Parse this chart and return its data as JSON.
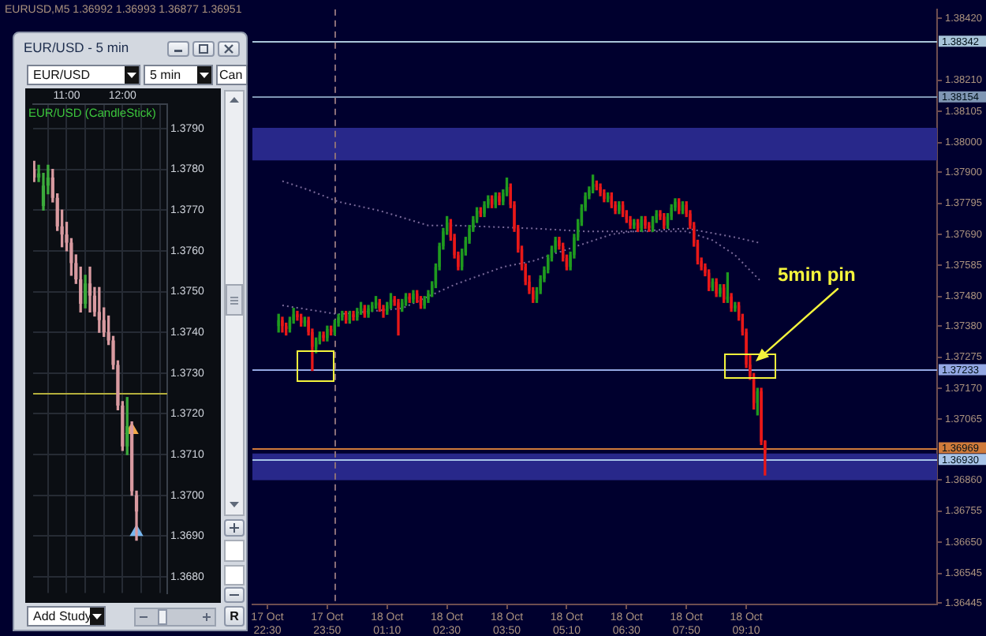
{
  "chart_data": [
    {
      "type": "candlestick",
      "title": "EURUSD,M5 1.36992 1.36993 1.36877 1.36951",
      "x": [
        "--10-17T22:45",
        "--10-17T22:50",
        "--10-17T22:55",
        "--10-17T23:00",
        "--10-17T23:05",
        "--10-17T23:10",
        "--10-17T23:15",
        "--10-17T23:20",
        "--10-17T23:25",
        "--10-17T23:30",
        "--10-17T23:35",
        "--10-17T23:40",
        "--10-17T23:45",
        "--10-17T23:50",
        "--10-17T23:55",
        "--10-18T00:00",
        "--10-18T00:05",
        "--10-18T00:10",
        "--10-18T00:15",
        "--10-18T00:20",
        "--10-18T00:25",
        "--10-18T00:30",
        "--10-18T00:35",
        "--10-18T00:40",
        "--10-18T00:45",
        "--10-18T00:50",
        "--10-18T00:55",
        "--10-18T01:00",
        "--10-18T01:05",
        "--10-18T01:10",
        "--10-18T01:15",
        "--10-18T01:20",
        "--10-18T01:25",
        "--10-18T01:30",
        "--10-18T01:35",
        "--10-18T01:40",
        "--10-18T01:45",
        "--10-18T01:50",
        "--10-18T01:55",
        "--10-18T02:00",
        "--10-18T02:05",
        "--10-18T02:10",
        "--10-18T02:15",
        "--10-18T02:20",
        "--10-18T02:25",
        "--10-18T02:30",
        "--10-18T02:35",
        "--10-18T02:40",
        "--10-18T02:45",
        "--10-18T02:50",
        "--10-18T02:55",
        "--10-18T03:00",
        "--10-18T03:05",
        "--10-18T03:10",
        "--10-18T03:15",
        "--10-18T03:20",
        "--10-18T03:25",
        "--10-18T03:30",
        "--10-18T03:35",
        "--10-18T03:40",
        "--10-18T03:45",
        "--10-18T03:50",
        "--10-18T03:55",
        "--10-18T04:00",
        "--10-18T04:05",
        "--10-18T04:10",
        "--10-18T04:15",
        "--10-18T04:20",
        "--10-18T04:25",
        "--10-18T04:30",
        "--10-18T04:35",
        "--10-18T04:40",
        "--10-18T04:45",
        "--10-18T04:50",
        "--10-18T04:55",
        "--10-18T05:00",
        "--10-18T05:05",
        "--10-18T05:10",
        "--10-18T05:15",
        "--10-18T05:20",
        "--10-18T05:25",
        "--10-18T05:30",
        "--10-18T05:35",
        "--10-18T05:40",
        "--10-18T05:45",
        "--10-18T05:50",
        "--10-18T05:55",
        "--10-18T06:00",
        "--10-18T06:05",
        "--10-18T06:10",
        "--10-18T06:15",
        "--10-18T06:20",
        "--10-18T06:25",
        "--10-18T06:30",
        "--10-18T06:35",
        "--10-18T06:40",
        "--10-18T06:45",
        "--10-18T06:50",
        "--10-18T06:55",
        "--10-18T07:00",
        "--10-18T07:05",
        "--10-18T07:10",
        "--10-18T07:15",
        "--10-18T07:20",
        "--10-18T07:25",
        "--10-18T07:30",
        "--10-18T07:35",
        "--10-18T07:40",
        "--10-18T07:45",
        "--10-18T07:50",
        "--10-18T07:55",
        "--10-18T08:00",
        "--10-18T08:05",
        "--10-18T08:10",
        "--10-18T08:15",
        "--10-18T08:20",
        "--10-18T08:25",
        "--10-18T08:30",
        "--10-18T08:35",
        "--10-18T08:40",
        "--10-18T08:45",
        "--10-18T08:50",
        "--10-18T08:55",
        "--10-18T09:00",
        "--10-18T09:05",
        "--10-18T09:10",
        "--10-18T09:15",
        "--10-18T09:20",
        "--10-18T09:25",
        "--10-18T09:30",
        "--10-18T09:35"
      ],
      "ohlc": [
        [
          1.3738,
          1.3742,
          1.3736,
          1.374
        ],
        [
          1.374,
          1.3741,
          1.3736,
          1.3738
        ],
        [
          1.3738,
          1.3739,
          1.3735,
          1.3737
        ],
        [
          1.3737,
          1.3741,
          1.3736,
          1.374
        ],
        [
          1.374,
          1.3744,
          1.3739,
          1.3742
        ],
        [
          1.3742,
          1.3743,
          1.374,
          1.3741
        ],
        [
          1.3741,
          1.3742,
          1.3738,
          1.3739
        ],
        [
          1.3739,
          1.3741,
          1.3738,
          1.374
        ],
        [
          1.374,
          1.3741,
          1.3735,
          1.3736
        ],
        [
          1.3736,
          1.3737,
          1.3723,
          1.3731
        ],
        [
          1.3731,
          1.3734,
          1.3729,
          1.3733
        ],
        [
          1.3733,
          1.3736,
          1.3732,
          1.3735
        ],
        [
          1.3735,
          1.3736,
          1.3733,
          1.3734
        ],
        [
          1.3734,
          1.3738,
          1.3733,
          1.3737
        ],
        [
          1.3737,
          1.3738,
          1.3735,
          1.3736
        ],
        [
          1.3736,
          1.374,
          1.3735,
          1.3739
        ],
        [
          1.3739,
          1.3742,
          1.3738,
          1.3741
        ],
        [
          1.3741,
          1.3743,
          1.374,
          1.3742
        ],
        [
          1.3742,
          1.3743,
          1.3739,
          1.374
        ],
        [
          1.374,
          1.3743,
          1.3739,
          1.3742
        ],
        [
          1.3742,
          1.3743,
          1.374,
          1.3741
        ],
        [
          1.3741,
          1.3744,
          1.374,
          1.3743
        ],
        [
          1.3743,
          1.3746,
          1.3742,
          1.3744
        ],
        [
          1.3744,
          1.3745,
          1.3741,
          1.3742
        ],
        [
          1.3742,
          1.3745,
          1.3741,
          1.3744
        ],
        [
          1.3744,
          1.3746,
          1.3743,
          1.3745
        ],
        [
          1.3745,
          1.3748,
          1.3744,
          1.3746
        ],
        [
          1.3746,
          1.3747,
          1.3743,
          1.3744
        ],
        [
          1.3744,
          1.3745,
          1.3741,
          1.3743
        ],
        [
          1.3743,
          1.3746,
          1.3742,
          1.3745
        ],
        [
          1.3745,
          1.3749,
          1.3744,
          1.3747
        ],
        [
          1.3747,
          1.3748,
          1.3745,
          1.3746
        ],
        [
          1.3746,
          1.3747,
          1.3735,
          1.3744
        ],
        [
          1.3744,
          1.3747,
          1.3743,
          1.3746
        ],
        [
          1.3746,
          1.3749,
          1.3745,
          1.3748
        ],
        [
          1.3748,
          1.3749,
          1.3746,
          1.3747
        ],
        [
          1.3747,
          1.375,
          1.3746,
          1.3749
        ],
        [
          1.3749,
          1.375,
          1.3746,
          1.3747
        ],
        [
          1.3747,
          1.3748,
          1.3744,
          1.3745
        ],
        [
          1.3745,
          1.3748,
          1.3744,
          1.3747
        ],
        [
          1.3747,
          1.375,
          1.3746,
          1.3749
        ],
        [
          1.3749,
          1.3753,
          1.3748,
          1.3752
        ],
        [
          1.3752,
          1.3759,
          1.3751,
          1.3758
        ],
        [
          1.3758,
          1.3766,
          1.3757,
          1.3765
        ],
        [
          1.3765,
          1.3771,
          1.3764,
          1.377
        ],
        [
          1.377,
          1.3775,
          1.3769,
          1.3773
        ],
        [
          1.3773,
          1.3774,
          1.3767,
          1.3768
        ],
        [
          1.3768,
          1.3769,
          1.3761,
          1.3762
        ],
        [
          1.3762,
          1.3763,
          1.3757,
          1.3758
        ],
        [
          1.3758,
          1.3764,
          1.3757,
          1.3763
        ],
        [
          1.3763,
          1.3768,
          1.3762,
          1.3767
        ],
        [
          1.3767,
          1.3772,
          1.3766,
          1.3771
        ],
        [
          1.3771,
          1.3775,
          1.377,
          1.3774
        ],
        [
          1.3774,
          1.3778,
          1.3773,
          1.3777
        ],
        [
          1.3777,
          1.3778,
          1.3775,
          1.3776
        ],
        [
          1.3776,
          1.378,
          1.3775,
          1.3779
        ],
        [
          1.3779,
          1.3782,
          1.3778,
          1.3781
        ],
        [
          1.3781,
          1.3782,
          1.3778,
          1.3779
        ],
        [
          1.3779,
          1.3783,
          1.3778,
          1.3782
        ],
        [
          1.3782,
          1.3783,
          1.3779,
          1.378
        ],
        [
          1.378,
          1.3784,
          1.3779,
          1.3783
        ],
        [
          1.3783,
          1.3788,
          1.3782,
          1.3785
        ],
        [
          1.3785,
          1.3786,
          1.3778,
          1.3779
        ],
        [
          1.3779,
          1.378,
          1.377,
          1.3771
        ],
        [
          1.3771,
          1.3772,
          1.3763,
          1.3764
        ],
        [
          1.3764,
          1.3765,
          1.3757,
          1.3758
        ],
        [
          1.3758,
          1.3759,
          1.3752,
          1.3753
        ],
        [
          1.3753,
          1.3755,
          1.3749,
          1.375
        ],
        [
          1.375,
          1.3751,
          1.3746,
          1.3747
        ],
        [
          1.3747,
          1.3751,
          1.3746,
          1.375
        ],
        [
          1.375,
          1.3755,
          1.3749,
          1.3754
        ],
        [
          1.3754,
          1.3758,
          1.3753,
          1.3757
        ],
        [
          1.3757,
          1.3762,
          1.3756,
          1.3761
        ],
        [
          1.3761,
          1.3765,
          1.376,
          1.3764
        ],
        [
          1.3764,
          1.3768,
          1.3763,
          1.3767
        ],
        [
          1.3767,
          1.3768,
          1.3764,
          1.3765
        ],
        [
          1.3765,
          1.3766,
          1.376,
          1.3761
        ],
        [
          1.3761,
          1.3762,
          1.3757,
          1.3758
        ],
        [
          1.3758,
          1.3763,
          1.3757,
          1.3762
        ],
        [
          1.3762,
          1.3769,
          1.3761,
          1.3768
        ],
        [
          1.3768,
          1.3774,
          1.3767,
          1.3773
        ],
        [
          1.3773,
          1.3779,
          1.3772,
          1.3778
        ],
        [
          1.3778,
          1.3783,
          1.3777,
          1.3782
        ],
        [
          1.3782,
          1.3785,
          1.3781,
          1.3784
        ],
        [
          1.3784,
          1.3789,
          1.3783,
          1.3786
        ],
        [
          1.3786,
          1.3787,
          1.3784,
          1.3785
        ],
        [
          1.3785,
          1.3786,
          1.3782,
          1.3783
        ],
        [
          1.3783,
          1.3784,
          1.378,
          1.3781
        ],
        [
          1.3781,
          1.3783,
          1.378,
          1.3782
        ],
        [
          1.3782,
          1.3783,
          1.3778,
          1.3779
        ],
        [
          1.3779,
          1.378,
          1.3776,
          1.3777
        ],
        [
          1.3777,
          1.378,
          1.3776,
          1.3779
        ],
        [
          1.3779,
          1.378,
          1.3775,
          1.3776
        ],
        [
          1.3776,
          1.3777,
          1.3773,
          1.3774
        ],
        [
          1.3774,
          1.3775,
          1.3771,
          1.3772
        ],
        [
          1.3772,
          1.3774,
          1.3771,
          1.3773
        ],
        [
          1.3773,
          1.3774,
          1.377,
          1.3771
        ],
        [
          1.3771,
          1.3775,
          1.377,
          1.3774
        ],
        [
          1.3774,
          1.3775,
          1.3771,
          1.3772
        ],
        [
          1.3772,
          1.3773,
          1.377,
          1.3771
        ],
        [
          1.3771,
          1.3775,
          1.377,
          1.3774
        ],
        [
          1.3774,
          1.3777,
          1.3773,
          1.3776
        ],
        [
          1.3776,
          1.3777,
          1.3774,
          1.3775
        ],
        [
          1.3775,
          1.3776,
          1.3771,
          1.3772
        ],
        [
          1.3772,
          1.3776,
          1.3771,
          1.3775
        ],
        [
          1.3775,
          1.3779,
          1.3774,
          1.3778
        ],
        [
          1.3778,
          1.3781,
          1.3777,
          1.378
        ],
        [
          1.378,
          1.3781,
          1.3776,
          1.3777
        ],
        [
          1.3777,
          1.378,
          1.3776,
          1.3779
        ],
        [
          1.3779,
          1.378,
          1.3775,
          1.3776
        ],
        [
          1.3776,
          1.3777,
          1.3771,
          1.3772
        ],
        [
          1.3772,
          1.3773,
          1.3765,
          1.3766
        ],
        [
          1.3766,
          1.3767,
          1.3759,
          1.376
        ],
        [
          1.376,
          1.3761,
          1.3757,
          1.3758
        ],
        [
          1.3758,
          1.3759,
          1.3755,
          1.3756
        ],
        [
          1.3756,
          1.3757,
          1.375,
          1.3751
        ],
        [
          1.3751,
          1.3754,
          1.375,
          1.3753
        ],
        [
          1.3753,
          1.3754,
          1.3748,
          1.3749
        ],
        [
          1.3749,
          1.3752,
          1.3748,
          1.3751
        ],
        [
          1.3751,
          1.3752,
          1.3746,
          1.3747
        ],
        [
          1.3747,
          1.3756,
          1.3746,
          1.3748
        ],
        [
          1.3748,
          1.3749,
          1.3743,
          1.3744
        ],
        [
          1.3744,
          1.3746,
          1.3743,
          1.3745
        ],
        [
          1.3745,
          1.3746,
          1.374,
          1.3741
        ],
        [
          1.3741,
          1.3742,
          1.3735,
          1.3736
        ],
        [
          1.3736,
          1.3737,
          1.3724,
          1.3725
        ],
        [
          1.3725,
          1.3728,
          1.372,
          1.3721
        ],
        [
          1.3721,
          1.3722,
          1.371,
          1.3712
        ],
        [
          1.3712,
          1.3717,
          1.3708,
          1.3716
        ],
        [
          1.3716,
          1.3717,
          1.3698,
          1.3699
        ],
        [
          1.36992,
          1.36993,
          1.36877,
          1.36951
        ]
      ],
      "colors": [
        "#1f9a1f",
        "#e81818",
        "#e81818",
        "#1f9a1f",
        "#1f9a1f",
        "#e81818",
        "#e81818",
        "#1f9a1f",
        "#e81818",
        "#e81818",
        "#1f9a1f",
        "#1f9a1f",
        "#e81818",
        "#1f9a1f",
        "#e81818",
        "#1f9a1f",
        "#1f9a1f",
        "#1f9a1f",
        "#e81818",
        "#1f9a1f",
        "#e81818",
        "#1f9a1f",
        "#1f9a1f",
        "#e81818",
        "#1f9a1f",
        "#1f9a1f",
        "#1f9a1f",
        "#e81818",
        "#e81818",
        "#1f9a1f",
        "#1f9a1f",
        "#e81818",
        "#e81818",
        "#1f9a1f",
        "#1f9a1f",
        "#e81818",
        "#1f9a1f",
        "#e81818",
        "#e81818",
        "#1f9a1f",
        "#1f9a1f",
        "#1f9a1f",
        "#1f9a1f",
        "#1f9a1f",
        "#1f9a1f",
        "#1f9a1f",
        "#e81818",
        "#e81818",
        "#e81818",
        "#1f9a1f",
        "#1f9a1f",
        "#1f9a1f",
        "#1f9a1f",
        "#1f9a1f",
        "#e81818",
        "#1f9a1f",
        "#1f9a1f",
        "#e81818",
        "#1f9a1f",
        "#e81818",
        "#1f9a1f",
        "#1f9a1f",
        "#e81818",
        "#e81818",
        "#e81818",
        "#e81818",
        "#e81818",
        "#e81818",
        "#e81818",
        "#1f9a1f",
        "#1f9a1f",
        "#1f9a1f",
        "#1f9a1f",
        "#1f9a1f",
        "#1f9a1f",
        "#e81818",
        "#e81818",
        "#e81818",
        "#1f9a1f",
        "#1f9a1f",
        "#1f9a1f",
        "#1f9a1f",
        "#1f9a1f",
        "#1f9a1f",
        "#1f9a1f",
        "#e81818",
        "#e81818",
        "#e81818",
        "#1f9a1f",
        "#e81818",
        "#e81818",
        "#1f9a1f",
        "#e81818",
        "#e81818",
        "#e81818",
        "#1f9a1f",
        "#e81818",
        "#1f9a1f",
        "#e81818",
        "#e81818",
        "#1f9a1f",
        "#1f9a1f",
        "#e81818",
        "#e81818",
        "#1f9a1f",
        "#1f9a1f",
        "#1f9a1f",
        "#e81818",
        "#1f9a1f",
        "#e81818",
        "#e81818",
        "#e81818",
        "#e81818",
        "#e81818",
        "#e81818",
        "#e81818",
        "#1f9a1f",
        "#e81818",
        "#1f9a1f",
        "#e81818",
        "#1f9a1f",
        "#e81818",
        "#1f9a1f",
        "#e81818",
        "#e81818",
        "#e81818",
        "#e81818",
        "#e81818",
        "#1f9a1f",
        "#e81818",
        "#e81818"
      ],
      "series": [
        {
          "type": "line",
          "color": "#7a6a9a",
          "line_style": "dotted",
          "marker": "none",
          "x": [
            "--10-17T22:50",
            "--10-17T23:25",
            "--10-18T00:05",
            "--10-18T01:00",
            "--10-18T02:05",
            "--10-18T02:40",
            "--10-18T04:25",
            "--10-18T05:35",
            "--10-18T06:40",
            "--10-18T07:50",
            "--10-18T08:55",
            "--10-18T09:30"
          ],
          "values": [
            1.3787,
            1.3784,
            1.378,
            1.3777,
            1.3772,
            1.3772,
            1.3771,
            1.377,
            1.377,
            1.3771,
            1.3768,
            1.3766
          ]
        },
        {
          "type": "line",
          "color": "#7a6a9a",
          "line_style": "dotted",
          "marker": "none",
          "x": [
            "--10-17T22:50",
            "--10-18T00:05",
            "--10-18T01:30",
            "--10-18T02:40",
            "--10-18T03:45",
            "--10-18T04:25",
            "--10-18T05:00",
            "--10-18T05:35",
            "--10-18T06:10",
            "--10-18T06:40",
            "--10-18T07:50",
            "--10-18T08:25",
            "--10-18T08:55",
            "--10-18T09:30"
          ],
          "values": [
            1.3745,
            1.3742,
            1.3744,
            1.3752,
            1.3758,
            1.376,
            1.3763,
            1.3766,
            1.3769,
            1.377,
            1.377,
            1.3767,
            1.3762,
            1.3753
          ]
        }
      ],
      "xlim": [
        "--10-17T22:10",
        "--10-18T13:25"
      ],
      "xticks": [
        {
          "value": "--10-17T22:30",
          "label": "17 Oct 22:30"
        },
        {
          "value": "--10-17T23:50",
          "label": "17 Oct 23:50"
        },
        {
          "value": "--10-18T01:10",
          "label": "18 Oct 01:10"
        },
        {
          "value": "--10-18T02:30",
          "label": "18 Oct 02:30"
        },
        {
          "value": "--10-18T03:50",
          "label": "18 Oct 03:50"
        },
        {
          "value": "--10-18T05:10",
          "label": "18 Oct 05:10"
        },
        {
          "value": "--10-18T06:30",
          "label": "18 Oct 06:30"
        },
        {
          "value": "--10-18T07:50",
          "label": "18 Oct 07:50"
        },
        {
          "value": "--10-18T09:10",
          "label": "18 Oct 09:10"
        }
      ],
      "ylim": [
        1.3644,
        1.3845
      ],
      "yticks": [
        {
          "value": 1.3842,
          "label": "1.38420"
        },
        {
          "value": 1.3821,
          "label": "1.38210"
        },
        {
          "value": 1.38105,
          "label": "1.38105"
        },
        {
          "value": 1.38,
          "label": "1.38000"
        },
        {
          "value": 1.379,
          "label": "1.37900"
        },
        {
          "value": 1.37795,
          "label": "1.37795"
        },
        {
          "value": 1.3769,
          "label": "1.37690"
        },
        {
          "value": 1.37585,
          "label": "1.37585"
        },
        {
          "value": 1.3748,
          "label": "1.37480"
        },
        {
          "value": 1.3738,
          "label": "1.37380"
        },
        {
          "value": 1.37275,
          "label": "1.37275"
        },
        {
          "value": 1.3717,
          "label": "1.37170"
        },
        {
          "value": 1.37065,
          "label": "1.37065"
        },
        {
          "value": 1.3686,
          "label": "1.36860"
        },
        {
          "value": 1.36755,
          "label": "1.36755"
        },
        {
          "value": 1.3665,
          "label": "1.36650"
        },
        {
          "value": 1.36545,
          "label": "1.36545"
        },
        {
          "value": 1.36445,
          "label": "1.36445"
        }
      ],
      "bands": [
        {
          "axis": "y",
          "from": 1.3794,
          "to": 1.3805,
          "color": "#28288a"
        },
        {
          "axis": "y",
          "from": 1.3686,
          "to": 1.3695,
          "color": "#28288a"
        }
      ],
      "ref_lines": [
        {
          "axis": "y",
          "value": 1.38342,
          "label": "1.38342",
          "color": "#a8c4d8"
        },
        {
          "axis": "y",
          "value": 1.38154,
          "label": "1.38154",
          "color": "#7f96b4"
        },
        {
          "axis": "y",
          "value": 1.37233,
          "label": "1.37233",
          "color": "#94a8e4"
        },
        {
          "axis": "y",
          "value": 1.36969,
          "label": "1.36969",
          "color": "#d07a3a"
        },
        {
          "axis": "y",
          "value": 1.3693,
          "label": "1.36930",
          "color": "#a8c4e8"
        },
        {
          "axis": "x",
          "value": "--10-18T00:00",
          "color": "#8a6e78",
          "line_style": "dashed"
        }
      ],
      "annotations": [
        "5min pin"
      ]
    },
    {
      "type": "candlestick",
      "title": "EUR/USD - 5 min",
      "subtitle": "EUR/USD (CandleStick)",
      "x": [
        10.4167,
        10.5,
        10.5833,
        10.6667,
        10.75,
        10.8333,
        10.9167,
        11,
        11.0833,
        11.1667,
        11.25,
        11.3333,
        11.4167,
        11.5,
        11.5833,
        11.6667,
        11.75,
        11.8333,
        11.9167,
        12,
        12.0833,
        12.1667,
        12.25
      ],
      "ohlc": [
        [
          1.378,
          1.3782,
          1.3777,
          1.3778
        ],
        [
          1.3778,
          1.3781,
          1.3777,
          1.3779
        ],
        [
          1.3771,
          1.3779,
          1.377,
          1.3776
        ],
        [
          1.3776,
          1.3781,
          1.3774,
          1.3778
        ],
        [
          1.3778,
          1.378,
          1.3772,
          1.3773
        ],
        [
          1.3773,
          1.3774,
          1.3765,
          1.3766
        ],
        [
          1.3766,
          1.377,
          1.3761,
          1.3764
        ],
        [
          1.3764,
          1.3767,
          1.376,
          1.3762
        ],
        [
          1.3762,
          1.3763,
          1.3754,
          1.3757
        ],
        [
          1.3757,
          1.3759,
          1.3752,
          1.3753
        ],
        [
          1.3753,
          1.3756,
          1.3745,
          1.3747
        ],
        [
          1.3747,
          1.3754,
          1.3746,
          1.3752
        ],
        [
          1.3752,
          1.3756,
          1.3745,
          1.3749
        ],
        [
          1.3749,
          1.3751,
          1.3744,
          1.3745
        ],
        [
          1.3745,
          1.3751,
          1.374,
          1.3743
        ],
        [
          1.3743,
          1.3746,
          1.3739,
          1.374
        ],
        [
          1.374,
          1.3744,
          1.3737,
          1.3738
        ],
        [
          1.3738,
          1.3739,
          1.3731,
          1.3732
        ],
        [
          1.3732,
          1.3733,
          1.3721,
          1.3722
        ],
        [
          1.3722,
          1.3723,
          1.3711,
          1.3712
        ],
        [
          1.3712,
          1.3724,
          1.371,
          1.3717
        ],
        [
          1.3717,
          1.3718,
          1.37,
          1.3701
        ],
        [
          1.37,
          1.3701,
          1.3689,
          1.3696
        ]
      ],
      "colors": [
        "#d89aa0",
        "#3caa3c",
        "#3caa3c",
        "#3caa3c",
        "#d89aa0",
        "#d89aa0",
        "#d89aa0",
        "#d89aa0",
        "#d89aa0",
        "#d89aa0",
        "#d89aa0",
        "#3caa3c",
        "#d89aa0",
        "#d89aa0",
        "#d89aa0",
        "#d89aa0",
        "#d89aa0",
        "#d89aa0",
        "#d89aa0",
        "#d89aa0",
        "#3caa3c",
        "#d89aa0",
        "#d89aa0"
      ],
      "series": [
        {
          "type": "scatter",
          "x": [
            12.1667
          ],
          "values": [
            1.3716
          ],
          "color": "#f0a848",
          "marker": "triangle"
        },
        {
          "type": "scatter",
          "x": [
            12.25
          ],
          "values": [
            1.3691
          ],
          "color": "#78b8f0",
          "marker": "triangle"
        }
      ],
      "xlim": [
        10.4,
        12.8
      ],
      "xticks": [
        {
          "value": 10.6667,
          "label": null
        },
        {
          "value": 11,
          "label": "11:00"
        },
        {
          "value": 11.3333,
          "label": null
        },
        {
          "value": 11.6667,
          "label": null
        },
        {
          "value": 12,
          "label": "12:00"
        },
        {
          "value": 12.3333,
          "label": null
        },
        {
          "value": 12.6667,
          "label": null
        }
      ],
      "ylim": [
        1.3676,
        1.3796
      ],
      "yticks": [
        {
          "value": 1.368,
          "label": "1.3680"
        },
        {
          "value": 1.369,
          "label": "1.3690"
        },
        {
          "value": 1.37,
          "label": "1.3700"
        },
        {
          "value": 1.371,
          "label": "1.3710"
        },
        {
          "value": 1.372,
          "label": "1.3720"
        },
        {
          "value": 1.373,
          "label": "1.3730"
        },
        {
          "value": 1.374,
          "label": "1.3740"
        },
        {
          "value": 1.375,
          "label": "1.3750"
        },
        {
          "value": 1.376,
          "label": "1.3760"
        },
        {
          "value": 1.377,
          "label": "1.3770"
        },
        {
          "value": 1.378,
          "label": "1.3780"
        },
        {
          "value": 1.379,
          "label": "1.3790"
        }
      ],
      "grid": true,
      "ref_lines": [
        {
          "axis": "y",
          "value": 1.3725,
          "color": "#b4ae3c"
        }
      ],
      "annotations": [
        "EUR/USD",
        "5 min",
        "Can",
        "Add Study",
        "R"
      ]
    }
  ]
}
